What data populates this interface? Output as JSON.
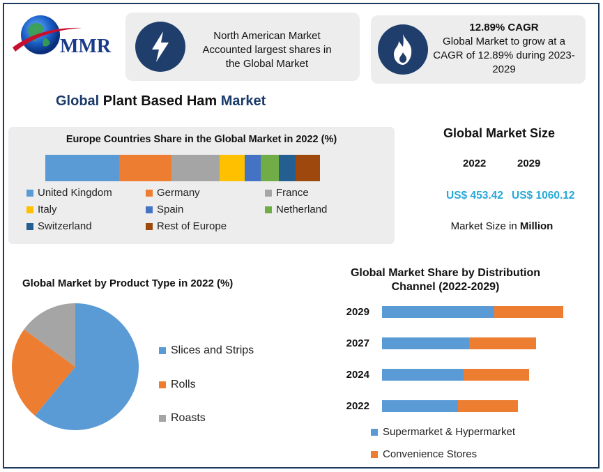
{
  "logo": {
    "text": "MMR",
    "icon": "globe-icon"
  },
  "highlights": [
    {
      "icon": "lightning-icon",
      "title": "",
      "text": "North American Market Accounted largest shares in the Global Market"
    },
    {
      "icon": "flame-icon",
      "title": "12.89% CAGR",
      "text": "Global Market to grow at a CAGR of 12.89% during 2023-2029"
    }
  ],
  "main_title": {
    "part1": "Global",
    "part2": " Plant Based Ham ",
    "part3": "Market"
  },
  "market_size": {
    "title": "Global Market Size",
    "years": [
      "2022",
      "2029"
    ],
    "values": [
      "US$ 453.42",
      "US$ 1060.12"
    ],
    "note_prefix": "Market Size in ",
    "note_unit": "Million"
  },
  "colors": {
    "blue": "#5b9bd5",
    "orange": "#ed7d31",
    "gray": "#a5a5a5",
    "yellow": "#ffc000",
    "royal": "#4472c4",
    "green": "#70ad47",
    "navy": "#255e91",
    "brown": "#9e480e",
    "dark_navy": "#1f3e6c",
    "accent_cyan": "#26a7d8"
  },
  "chart_data": [
    {
      "type": "bar",
      "orientation": "horizontal-stacked",
      "title": "Europe Countries Share in the Global Market in 2022 (%)",
      "categories": [
        "2022"
      ],
      "series": [
        {
          "name": "United Kingdom",
          "values": [
            27
          ],
          "color": "#5b9bd5"
        },
        {
          "name": "Germany",
          "values": [
            19
          ],
          "color": "#ed7d31"
        },
        {
          "name": "France",
          "values": [
            17.5
          ],
          "color": "#a5a5a5"
        },
        {
          "name": "Italy",
          "values": [
            9
          ],
          "color": "#ffc000"
        },
        {
          "name": "Spain",
          "values": [
            6
          ],
          "color": "#4472c4"
        },
        {
          "name": "Netherland",
          "values": [
            6.5
          ],
          "color": "#70ad47"
        },
        {
          "name": "Switzerland",
          "values": [
            6
          ],
          "color": "#255e91"
        },
        {
          "name": "Rest of Europe",
          "values": [
            9
          ],
          "color": "#9e480e"
        }
      ],
      "legend": "bottom"
    },
    {
      "type": "pie",
      "title": "Global Market by Product Type in 2022 (%)",
      "labels": [
        "Slices and Strips",
        "Rolls",
        "Roasts"
      ],
      "values": [
        61,
        24,
        15
      ],
      "colors": [
        "#5b9bd5",
        "#ed7d31",
        "#a5a5a5"
      ],
      "legend": "right"
    },
    {
      "type": "bar",
      "orientation": "horizontal-stacked",
      "title": "Global Market Share by Distribution Channel (2022-2029)",
      "categories": [
        "2029",
        "2027",
        "2024",
        "2022"
      ],
      "series": [
        {
          "name": "Supermarket & Hypermarket",
          "values": [
            62,
            48,
            45,
            42
          ],
          "color": "#5b9bd5"
        },
        {
          "name": "Convenience Stores",
          "values": [
            38,
            37,
            36,
            33
          ],
          "color": "#ed7d31"
        }
      ],
      "legend": "bottom"
    }
  ]
}
